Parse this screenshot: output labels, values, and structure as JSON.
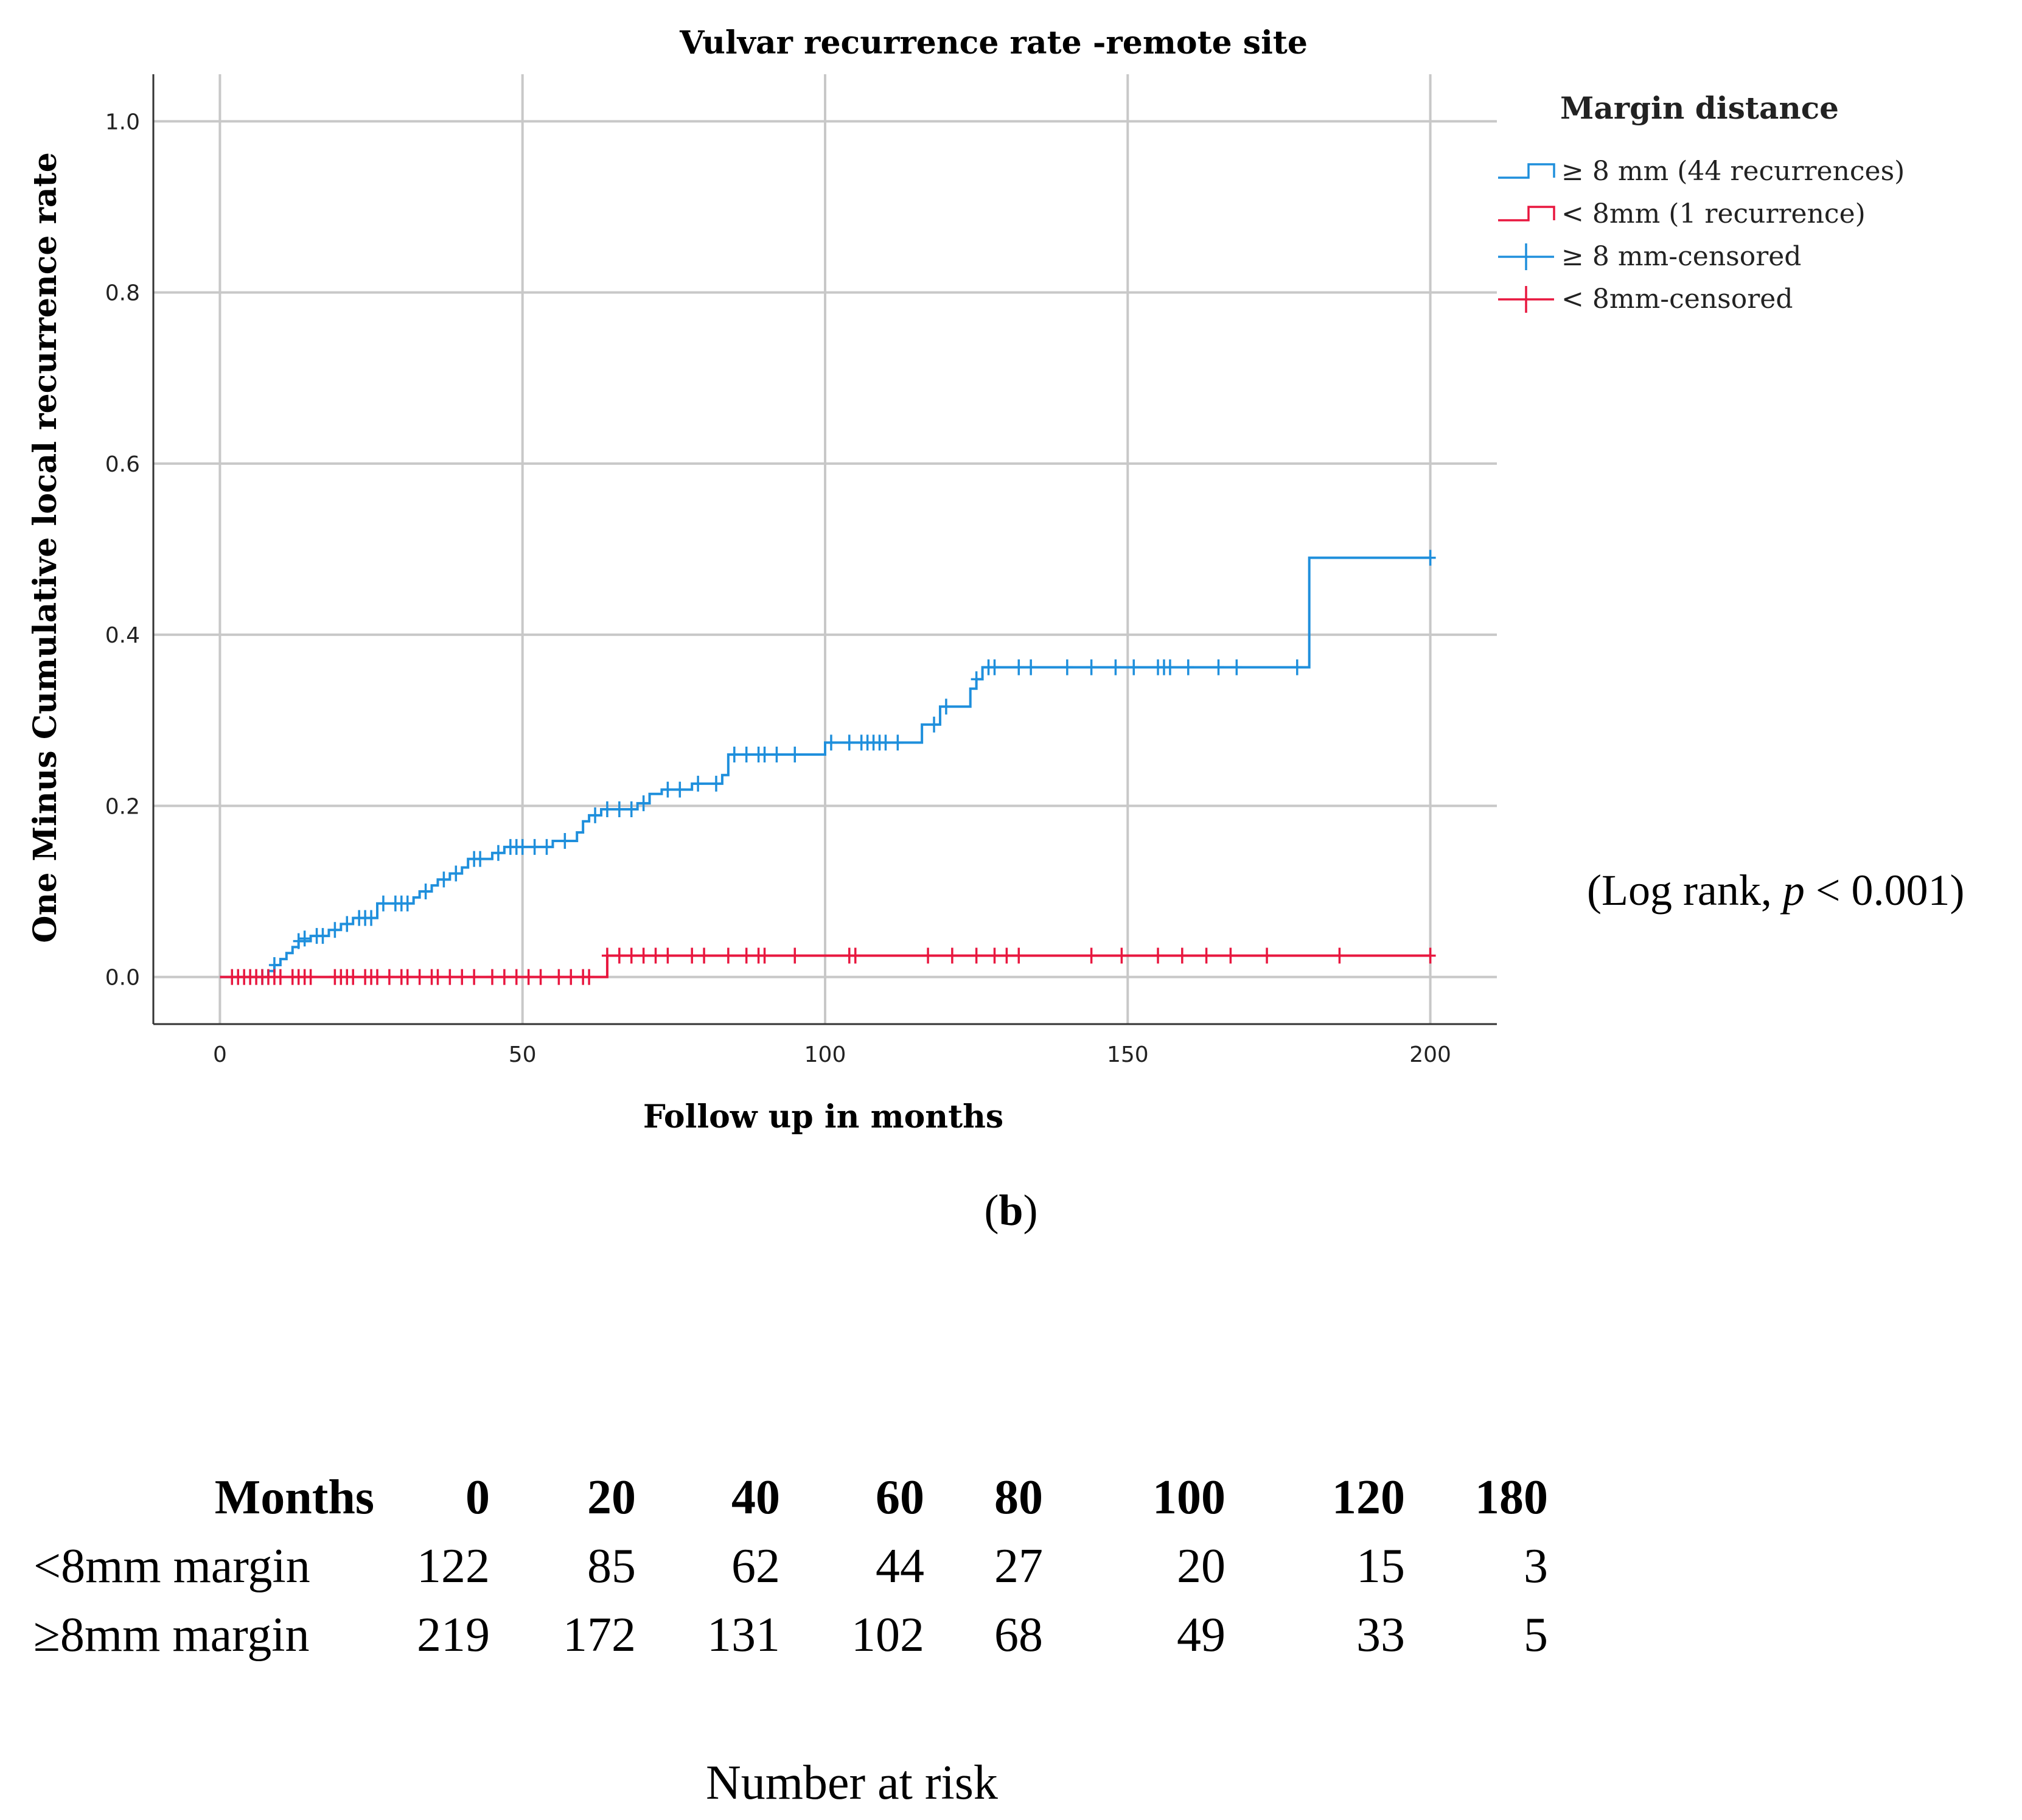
{
  "chart_data": {
    "type": "line",
    "title": "Vulvar recurrence rate -remote site",
    "xlabel": "Follow up in months",
    "ylabel": "One Minus Cumulative local recurrence rate",
    "xlim": [
      -11,
      211
    ],
    "ylim": [
      -0.055,
      1.055
    ],
    "xticks": [
      0,
      50,
      100,
      150,
      200
    ],
    "yticks": [
      0.0,
      0.2,
      0.4,
      0.6,
      0.8,
      1.0
    ],
    "grid": true,
    "legend_title": "Margin distance",
    "legend_position": "right",
    "legend": [
      {
        "label": "≥ 8 mm (44 recurrences)",
        "kind": "step",
        "color": "#1f8fdc"
      },
      {
        "label": "< 8mm (1 recurrence)",
        "kind": "step",
        "color": "#e8173f"
      },
      {
        "label": "≥ 8 mm-censored",
        "kind": "cross",
        "color": "#1f8fdc"
      },
      {
        "label": "< 8mm-censored",
        "kind": "cross",
        "color": "#e8173f"
      }
    ],
    "series": [
      {
        "color": "#1f8fdc",
        "steps": [
          [
            0,
            0
          ],
          [
            7,
            0
          ],
          [
            8,
            0.007
          ],
          [
            9,
            0.014
          ],
          [
            10,
            0.021
          ],
          [
            11,
            0.028
          ],
          [
            12,
            0.035
          ],
          [
            13,
            0.042
          ],
          [
            15,
            0.048
          ],
          [
            18,
            0.055
          ],
          [
            20,
            0.062
          ],
          [
            22,
            0.069
          ],
          [
            26,
            0.086
          ],
          [
            32,
            0.093
          ],
          [
            33,
            0.1
          ],
          [
            35,
            0.107
          ],
          [
            36,
            0.114
          ],
          [
            38,
            0.121
          ],
          [
            40,
            0.128
          ],
          [
            41,
            0.138
          ],
          [
            45,
            0.145
          ],
          [
            47,
            0.152
          ],
          [
            55,
            0.159
          ],
          [
            59,
            0.169
          ],
          [
            60,
            0.182
          ],
          [
            61,
            0.189
          ],
          [
            63,
            0.196
          ],
          [
            69,
            0.203
          ],
          [
            71,
            0.214
          ],
          [
            73,
            0.219
          ],
          [
            78,
            0.226
          ],
          [
            83,
            0.236
          ],
          [
            84,
            0.26
          ],
          [
            100,
            0.274
          ],
          [
            116,
            0.295
          ],
          [
            119,
            0.316
          ],
          [
            124,
            0.337
          ],
          [
            125,
            0.348
          ],
          [
            126,
            0.362
          ],
          [
            180,
            0.362
          ],
          [
            180,
            0.49
          ],
          [
            200,
            0.49
          ]
        ],
        "censored": [
          [
            7,
            0.0
          ],
          [
            9,
            0.014
          ],
          [
            13,
            0.042
          ],
          [
            14,
            0.045
          ],
          [
            16,
            0.048
          ],
          [
            17,
            0.048
          ],
          [
            19,
            0.055
          ],
          [
            21,
            0.062
          ],
          [
            23,
            0.069
          ],
          [
            24,
            0.069
          ],
          [
            25,
            0.069
          ],
          [
            27,
            0.086
          ],
          [
            29,
            0.086
          ],
          [
            30,
            0.086
          ],
          [
            31,
            0.086
          ],
          [
            34,
            0.1
          ],
          [
            37,
            0.114
          ],
          [
            39,
            0.121
          ],
          [
            42,
            0.138
          ],
          [
            43,
            0.138
          ],
          [
            46,
            0.145
          ],
          [
            48,
            0.152
          ],
          [
            49,
            0.152
          ],
          [
            50,
            0.152
          ],
          [
            52,
            0.152
          ],
          [
            54,
            0.152
          ],
          [
            57,
            0.159
          ],
          [
            62,
            0.189
          ],
          [
            64,
            0.196
          ],
          [
            66,
            0.196
          ],
          [
            68,
            0.196
          ],
          [
            70,
            0.203
          ],
          [
            74,
            0.219
          ],
          [
            76,
            0.219
          ],
          [
            79,
            0.226
          ],
          [
            82,
            0.226
          ],
          [
            85,
            0.26
          ],
          [
            87,
            0.26
          ],
          [
            89,
            0.26
          ],
          [
            90,
            0.26
          ],
          [
            92,
            0.26
          ],
          [
            95,
            0.26
          ],
          [
            101,
            0.274
          ],
          [
            104,
            0.274
          ],
          [
            106,
            0.274
          ],
          [
            107,
            0.274
          ],
          [
            108,
            0.274
          ],
          [
            109,
            0.274
          ],
          [
            110,
            0.274
          ],
          [
            112,
            0.274
          ],
          [
            118,
            0.295
          ],
          [
            120,
            0.316
          ],
          [
            125,
            0.348
          ],
          [
            127,
            0.362
          ],
          [
            128,
            0.362
          ],
          [
            132,
            0.362
          ],
          [
            134,
            0.362
          ],
          [
            140,
            0.362
          ],
          [
            144,
            0.362
          ],
          [
            148,
            0.362
          ],
          [
            151,
            0.362
          ],
          [
            155,
            0.362
          ],
          [
            156,
            0.362
          ],
          [
            157,
            0.362
          ],
          [
            160,
            0.362
          ],
          [
            165,
            0.362
          ],
          [
            168,
            0.362
          ],
          [
            178,
            0.362
          ],
          [
            200,
            0.49
          ]
        ]
      },
      {
        "color": "#e8173f",
        "steps": [
          [
            0,
            0
          ],
          [
            64,
            0
          ],
          [
            64,
            0.025
          ],
          [
            200,
            0.025
          ]
        ],
        "censored": [
          [
            2,
            0
          ],
          [
            3,
            0
          ],
          [
            4,
            0
          ],
          [
            5,
            0
          ],
          [
            6,
            0
          ],
          [
            7,
            0
          ],
          [
            8,
            0
          ],
          [
            9,
            0
          ],
          [
            10,
            0
          ],
          [
            12,
            0
          ],
          [
            13,
            0
          ],
          [
            14,
            0
          ],
          [
            15,
            0
          ],
          [
            19,
            0
          ],
          [
            20,
            0
          ],
          [
            21,
            0
          ],
          [
            22,
            0
          ],
          [
            24,
            0
          ],
          [
            25,
            0
          ],
          [
            26,
            0
          ],
          [
            28,
            0
          ],
          [
            30,
            0
          ],
          [
            31,
            0
          ],
          [
            33,
            0
          ],
          [
            35,
            0
          ],
          [
            36,
            0
          ],
          [
            38,
            0
          ],
          [
            40,
            0
          ],
          [
            42,
            0
          ],
          [
            45,
            0
          ],
          [
            47,
            0
          ],
          [
            49,
            0
          ],
          [
            51,
            0
          ],
          [
            53,
            0
          ],
          [
            56,
            0
          ],
          [
            58,
            0
          ],
          [
            60,
            0
          ],
          [
            61,
            0
          ],
          [
            64,
            0.025
          ],
          [
            66,
            0.025
          ],
          [
            68,
            0.025
          ],
          [
            70,
            0.025
          ],
          [
            72,
            0.025
          ],
          [
            74,
            0.025
          ],
          [
            78,
            0.025
          ],
          [
            80,
            0.025
          ],
          [
            84,
            0.025
          ],
          [
            87,
            0.025
          ],
          [
            89,
            0.025
          ],
          [
            90,
            0.025
          ],
          [
            95,
            0.025
          ],
          [
            104,
            0.025
          ],
          [
            105,
            0.025
          ],
          [
            117,
            0.025
          ],
          [
            121,
            0.025
          ],
          [
            125,
            0.025
          ],
          [
            128,
            0.025
          ],
          [
            130,
            0.025
          ],
          [
            132,
            0.025
          ],
          [
            144,
            0.025
          ],
          [
            149,
            0.025
          ],
          [
            155,
            0.025
          ],
          [
            159,
            0.025
          ],
          [
            163,
            0.025
          ],
          [
            167,
            0.025
          ],
          [
            173,
            0.025
          ],
          [
            185,
            0.025
          ],
          [
            200,
            0.025
          ]
        ]
      }
    ]
  },
  "annotation": {
    "logrank_prefix": "(Log rank, ",
    "logrank_p": "p",
    "logrank_suffix": " < 0.001)"
  },
  "panel_label": {
    "open": "(",
    "letter": "b",
    "close": ")"
  },
  "risk_table": {
    "header_label": "Months",
    "columns": [
      "0",
      "20",
      "40",
      "60",
      "80",
      "100",
      "120",
      "180"
    ],
    "rows": [
      {
        "label": "<8mm margin",
        "values": [
          "122",
          "85",
          "62",
          "44",
          "27",
          "20",
          "15",
          "3"
        ]
      },
      {
        "label": "≥8mm margin",
        "values": [
          "219",
          "172",
          "131",
          "102",
          "68",
          "49",
          "33",
          "5"
        ]
      }
    ],
    "caption": "Number at risk"
  }
}
